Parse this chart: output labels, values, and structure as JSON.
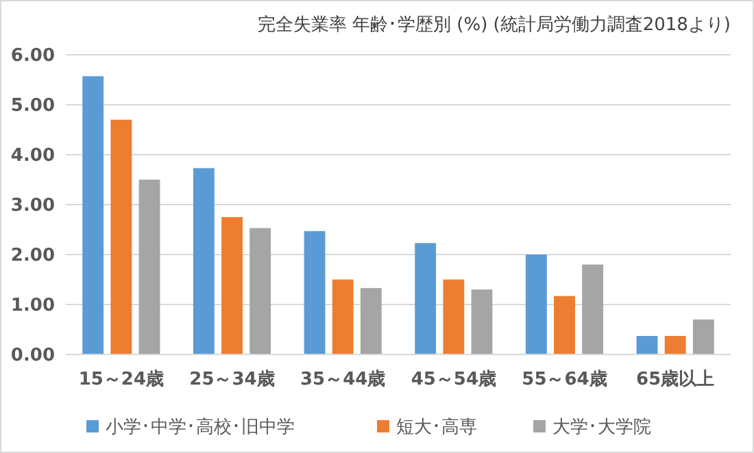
{
  "chart_data": {
    "type": "bar",
    "title": "完全失業率 年齢･学歴別 (%) (統計局労働力調査2018より)",
    "categories": [
      "15～24歳",
      "25～34歳",
      "35～44歳",
      "45～54歳",
      "55～64歳",
      "65歳以上"
    ],
    "series": [
      {
        "name": "小学･中学･高校･旧中学",
        "color": "#5b9bd5",
        "values": [
          5.57,
          3.73,
          2.47,
          2.23,
          2.0,
          0.37
        ]
      },
      {
        "name": "短大･高専",
        "color": "#ed7d31",
        "values": [
          4.7,
          2.75,
          1.5,
          1.5,
          1.17,
          0.37
        ]
      },
      {
        "name": "大学･大学院",
        "color": "#a5a5a5",
        "values": [
          3.5,
          2.53,
          1.33,
          1.3,
          1.8,
          0.7
        ]
      }
    ],
    "ylim": [
      0,
      6
    ],
    "yticks": [
      {
        "value": 0,
        "label": "0.00"
      },
      {
        "value": 1,
        "label": "1.00"
      },
      {
        "value": 2,
        "label": "2.00"
      },
      {
        "value": 3,
        "label": "3.00"
      },
      {
        "value": 4,
        "label": "4.00"
      },
      {
        "value": 5,
        "label": "5.00"
      },
      {
        "value": 6,
        "label": "6.00"
      }
    ],
    "grid": "y",
    "legend": "bottom"
  }
}
